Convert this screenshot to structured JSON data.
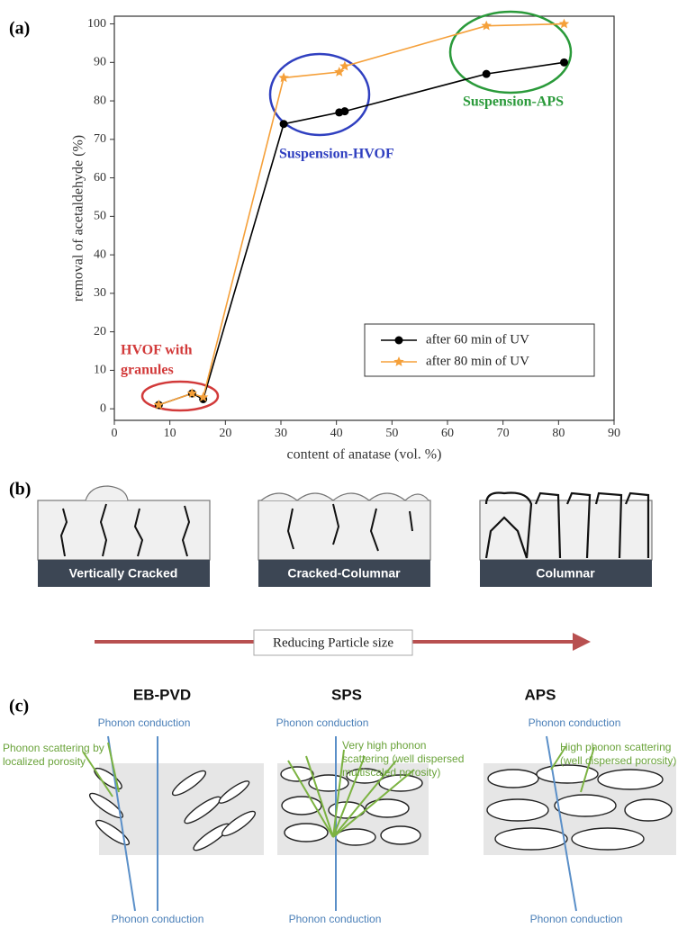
{
  "chart_data": {
    "type": "line",
    "panel_label": "(a)",
    "xlabel": "content of anatase (vol. %)",
    "ylabel": "removal of acetaldehyde (%)",
    "xlim": [
      0,
      90
    ],
    "ylim": [
      -3,
      102
    ],
    "xticks": [
      0,
      10,
      20,
      30,
      40,
      50,
      60,
      70,
      80,
      90
    ],
    "yticks": [
      0,
      10,
      20,
      30,
      40,
      50,
      60,
      70,
      80,
      90,
      100
    ],
    "legend": "lower right",
    "series": [
      {
        "name": "after 60 min of UV",
        "color": "#000000",
        "marker": "circle",
        "x": [
          8,
          14,
          16,
          30.5,
          40.5,
          41.5,
          67,
          81
        ],
        "values": [
          1,
          4,
          2.5,
          74,
          77,
          77.3,
          87,
          90
        ]
      },
      {
        "name": "after 80 min of UV",
        "color": "#f5a03a",
        "marker": "star",
        "x": [
          8,
          14,
          16,
          30.5,
          40.5,
          41.5,
          67,
          81
        ],
        "values": [
          1,
          4,
          3,
          86,
          87.5,
          89,
          99.5,
          100
        ]
      }
    ],
    "annotations": [
      {
        "text": [
          "HVOF with",
          "granules"
        ],
        "color": "#d23a3a"
      },
      {
        "text": [
          "Suspension-HVOF"
        ],
        "color": "#3040c0"
      },
      {
        "text": [
          "Suspension-APS"
        ],
        "color": "#2a9a3a"
      }
    ]
  },
  "panel_b": {
    "panel_label": "(b)",
    "structures": [
      "Vertically Cracked",
      "Cracked-Columnar",
      "Columnar"
    ],
    "arrow_label": "Reducing Particle size"
  },
  "panel_c": {
    "panel_label": "(c)",
    "columns": [
      {
        "title": "EB-PVD",
        "top": "Phonon conduction",
        "bottom": "Phonon conduction",
        "note": [
          "Phonon scattering by",
          "localized porosity"
        ]
      },
      {
        "title": "SPS",
        "top": "Phonon conduction",
        "bottom": "Phonon conduction",
        "note": [
          "Very high phonon",
          "scattering (well dispersed",
          "multiscaled porosity)"
        ]
      },
      {
        "title": "APS",
        "top": "Phonon conduction",
        "bottom": "Phonon conduction",
        "note": [
          "High phonon scattering",
          "(well dispersed porosity)"
        ]
      }
    ]
  }
}
